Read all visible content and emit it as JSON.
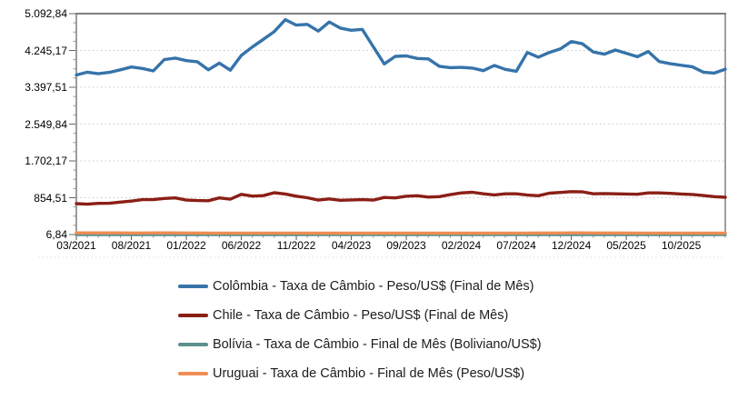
{
  "chart_data": {
    "type": "line",
    "title": "",
    "legend_position": "bottom",
    "grid": "horizontal-dotted",
    "y_axis": {
      "min": 6.84,
      "max": 5092.84,
      "tick_labels": [
        "5.092,84",
        "4.245,17",
        "3.397,51",
        "2.549,84",
        "1.702,17",
        "854,51",
        "6,84"
      ]
    },
    "x_axis": {
      "tick_labels": [
        "03/2021",
        "08/2021",
        "01/2022",
        "06/2022",
        "11/2022",
        "04/2023",
        "09/2023",
        "02/2024",
        "07/2024",
        "12/2024",
        "05/2025",
        "10/2025"
      ],
      "tick_month_indices": [
        0,
        5,
        10,
        15,
        20,
        25,
        30,
        35,
        40,
        45,
        50,
        55
      ]
    },
    "months": [
      "03/2021",
      "04/2021",
      "05/2021",
      "06/2021",
      "07/2021",
      "08/2021",
      "09/2021",
      "10/2021",
      "11/2021",
      "12/2021",
      "01/2022",
      "02/2022",
      "03/2022",
      "04/2022",
      "05/2022",
      "06/2022",
      "07/2022",
      "08/2022",
      "09/2022",
      "10/2022",
      "11/2022",
      "12/2022",
      "01/2023",
      "02/2023",
      "03/2023",
      "04/2023",
      "05/2023",
      "06/2023",
      "07/2023",
      "08/2023",
      "09/2023",
      "10/2023",
      "11/2023",
      "12/2023",
      "01/2024",
      "02/2024",
      "03/2024",
      "04/2024",
      "05/2024",
      "06/2024",
      "07/2024",
      "08/2024",
      "09/2024",
      "10/2024",
      "11/2024",
      "12/2024",
      "01/2025",
      "02/2025",
      "03/2025",
      "04/2025",
      "05/2025",
      "06/2025",
      "07/2025",
      "08/2025",
      "09/2025",
      "10/2025",
      "11/2025",
      "12/2025",
      "01/2026",
      "02/2026"
    ],
    "series": [
      {
        "name": "Colômbia - Taxa de Câmbio - Peso/US$ (Final de Mês)",
        "color": "#3673aa",
        "values": [
          3680,
          3745,
          3710,
          3740,
          3800,
          3865,
          3830,
          3775,
          4035,
          4070,
          4010,
          3985,
          3800,
          3955,
          3790,
          4130,
          4325,
          4500,
          4680,
          4955,
          4830,
          4845,
          4690,
          4900,
          4760,
          4710,
          4730,
          4330,
          3935,
          4110,
          4120,
          4060,
          4050,
          3880,
          3850,
          3855,
          3840,
          3780,
          3900,
          3810,
          3765,
          4200,
          4090,
          4200,
          4280,
          4450,
          4400,
          4210,
          4160,
          4255,
          4180,
          4100,
          4220,
          3990,
          3940,
          3905,
          3870,
          3745,
          3725,
          3815
        ]
      },
      {
        "name": "Chile - Taxa de Câmbio - Peso/US$ (Final de Mês)",
        "color": "#8b1f16",
        "values": [
          719,
          705,
          724,
          727,
          755,
          778,
          811,
          812,
          838,
          850,
          800,
          790,
          786,
          850,
          822,
          932,
          893,
          902,
          970,
          940,
          890,
          855,
          800,
          827,
          795,
          805,
          810,
          800,
          860,
          850,
          890,
          900,
          870,
          880,
          925,
          965,
          980,
          945,
          920,
          945,
          945,
          915,
          900,
          960,
          975,
          995,
          990,
          945,
          950,
          945,
          940,
          935,
          965,
          965,
          955,
          940,
          930,
          905,
          880,
          865
        ]
      },
      {
        "name": "Bolívia - Taxa de Câmbio - Final de Mês (Boliviano/US$)",
        "color": "#5c908c",
        "values": [
          6.86,
          6.86,
          6.86,
          6.86,
          6.86,
          6.86,
          6.86,
          6.86,
          6.86,
          6.86,
          6.86,
          6.86,
          6.86,
          6.86,
          6.86,
          6.86,
          6.86,
          6.86,
          6.86,
          6.86,
          6.86,
          6.86,
          6.86,
          6.86,
          6.86,
          6.86,
          6.86,
          6.86,
          6.86,
          6.86,
          6.86,
          6.86,
          6.86,
          6.86,
          6.86,
          6.86,
          6.86,
          6.86,
          6.86,
          6.86,
          6.86,
          6.86,
          6.86,
          6.86,
          6.86,
          6.86,
          6.86,
          6.86,
          6.86,
          6.86,
          6.86,
          6.86,
          6.86,
          6.86,
          6.86,
          6.86,
          6.86,
          6.86,
          6.86,
          6.86
        ]
      },
      {
        "name": "Uruguai - Taxa de Câmbio - Final de Mês (Peso/US$)",
        "color": "#ef8d53",
        "values": [
          44.1,
          43.5,
          43.9,
          43.8,
          43.6,
          42.7,
          42.8,
          43.9,
          44.2,
          44.7,
          43.4,
          42.7,
          41.1,
          40.5,
          39.9,
          39.4,
          40.9,
          41.3,
          41.3,
          40.4,
          39.8,
          40.1,
          38.9,
          39.1,
          38.8,
          38.6,
          38.7,
          37.8,
          37.6,
          37.7,
          38.1,
          39.9,
          39.0,
          39.0,
          39.1,
          39.2,
          37.7,
          38.3,
          38.9,
          39.7,
          40.3,
          40.5,
          41.8,
          41.6,
          42.9,
          44.0,
          43.6,
          42.4,
          42.3,
          41.9,
          41.6,
          40.0,
          40.4,
          40.1,
          39.9,
          39.8,
          39.7,
          39.6,
          39.5,
          39.4
        ]
      }
    ]
  }
}
